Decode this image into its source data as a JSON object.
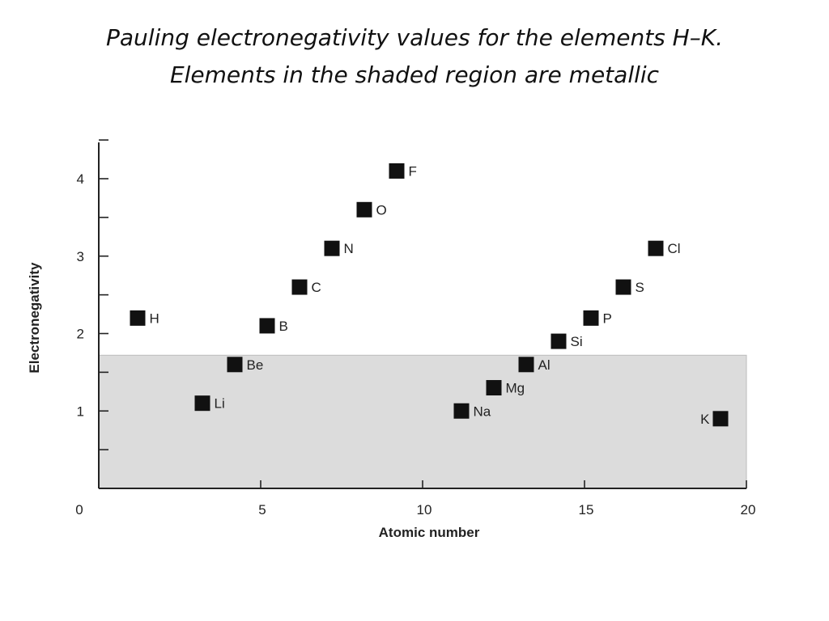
{
  "slide": {
    "title_line1": "Pauling electronegativity values for the elements H–K.",
    "title_line2": "Elements in the shaded region are metallic"
  },
  "chart_data": {
    "type": "scatter",
    "xlabel": "Atomic number",
    "ylabel": "Electronegativity",
    "xlim": [
      0,
      20
    ],
    "ylim": [
      0,
      4.5
    ],
    "xticks": [
      0,
      5,
      10,
      15,
      20
    ],
    "yticks": [
      1,
      2,
      3,
      4
    ],
    "grid": false,
    "shaded_region": {
      "y_max": 1.72,
      "meaning": "metallic"
    },
    "shade_color": "#dcdcdc",
    "marker_color": "#111111",
    "points": [
      {
        "label": "H",
        "x": 1,
        "y": 2.2
      },
      {
        "label": "Li",
        "x": 3,
        "y": 1.1
      },
      {
        "label": "Be",
        "x": 4,
        "y": 1.6
      },
      {
        "label": "B",
        "x": 5,
        "y": 2.1
      },
      {
        "label": "C",
        "x": 6,
        "y": 2.6
      },
      {
        "label": "N",
        "x": 7,
        "y": 3.1
      },
      {
        "label": "O",
        "x": 8,
        "y": 3.6
      },
      {
        "label": "F",
        "x": 9,
        "y": 4.1
      },
      {
        "label": "Na",
        "x": 11,
        "y": 1.0
      },
      {
        "label": "Mg",
        "x": 12,
        "y": 1.3
      },
      {
        "label": "Al",
        "x": 13,
        "y": 1.6
      },
      {
        "label": "Si",
        "x": 14,
        "y": 1.9
      },
      {
        "label": "P",
        "x": 15,
        "y": 2.2
      },
      {
        "label": "S",
        "x": 16,
        "y": 2.6
      },
      {
        "label": "Cl",
        "x": 17,
        "y": 3.1
      },
      {
        "label": "K",
        "x": 19,
        "y": 0.9
      }
    ]
  }
}
